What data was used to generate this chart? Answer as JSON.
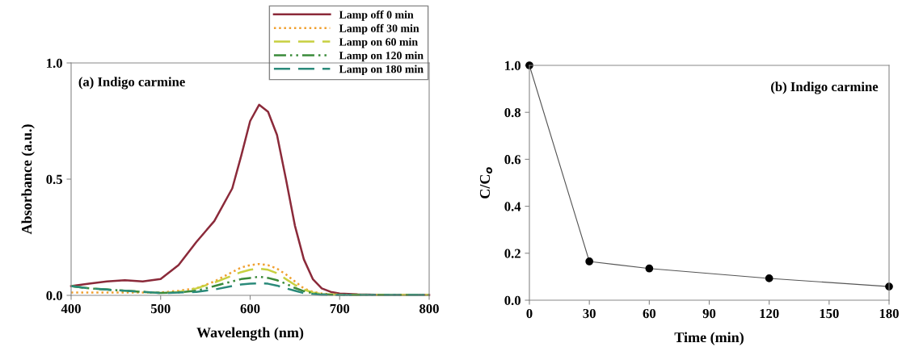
{
  "chart_data": [
    {
      "type": "line",
      "xlabel": "Wavelength (nm)",
      "ylabel": "Absorbance (a.u.)",
      "annotations": [
        "(a) Indigo carmine"
      ],
      "x": [
        400,
        420,
        440,
        460,
        480,
        500,
        520,
        540,
        560,
        580,
        590,
        600,
        610,
        620,
        630,
        640,
        650,
        660,
        670,
        680,
        690,
        700,
        720,
        750,
        800
      ],
      "series": [
        {
          "name": "Lamp off 0 min",
          "color": "#8b2a3a",
          "line_style": "solid",
          "values": [
            0.04,
            0.05,
            0.06,
            0.065,
            0.06,
            0.07,
            0.13,
            0.23,
            0.32,
            0.46,
            0.6,
            0.75,
            0.82,
            0.79,
            0.69,
            0.5,
            0.3,
            0.155,
            0.07,
            0.03,
            0.015,
            0.008,
            0.004,
            0.002,
            0.002
          ]
        },
        {
          "name": "Lamp off 30 min",
          "color": "#f0a030",
          "line_style": "dotted",
          "values": [
            0.012,
            0.012,
            0.012,
            0.012,
            0.012,
            0.012,
            0.02,
            0.03,
            0.06,
            0.1,
            0.12,
            0.13,
            0.135,
            0.13,
            0.115,
            0.09,
            0.06,
            0.03,
            0.015,
            0.008,
            0.005,
            0.003,
            0.002,
            0.002,
            0.002
          ]
        },
        {
          "name": "Lamp on 60 min",
          "color": "#c8d040",
          "line_style": "dashed",
          "values": [
            0.04,
            0.03,
            0.025,
            0.02,
            0.015,
            0.01,
            0.015,
            0.03,
            0.055,
            0.085,
            0.1,
            0.11,
            0.115,
            0.11,
            0.095,
            0.07,
            0.045,
            0.025,
            0.012,
            0.006,
            0.004,
            0.003,
            0.002,
            0.002,
            0.002
          ]
        },
        {
          "name": "Lamp on 120 min",
          "color": "#3a8a3a",
          "line_style": "dashdot",
          "values": [
            0.04,
            0.03,
            0.025,
            0.02,
            0.015,
            0.01,
            0.013,
            0.02,
            0.04,
            0.06,
            0.07,
            0.075,
            0.08,
            0.075,
            0.065,
            0.05,
            0.032,
            0.018,
            0.009,
            0.005,
            0.003,
            0.002,
            0.002,
            0.002,
            0.002
          ]
        },
        {
          "name": "Lamp on 180 min",
          "color": "#2a8a7a",
          "line_style": "dashed",
          "values": [
            0.04,
            0.03,
            0.025,
            0.02,
            0.015,
            0.01,
            0.012,
            0.015,
            0.025,
            0.04,
            0.047,
            0.05,
            0.052,
            0.05,
            0.042,
            0.03,
            0.02,
            0.01,
            0.006,
            0.003,
            0.002,
            0.002,
            0.002,
            0.002,
            0.002
          ]
        }
      ],
      "xlim": [
        400,
        800
      ],
      "xticks": [
        400,
        500,
        600,
        700,
        800
      ],
      "ylim": [
        0,
        1
      ],
      "yticks": [
        {
          "value": 0,
          "label": "0.0"
        },
        {
          "value": 0.5,
          "label": "0.5"
        },
        {
          "value": 1,
          "label": "1.0"
        }
      ],
      "grid": false,
      "legend": "top right"
    },
    {
      "type": "line",
      "xlabel": "Time (min)",
      "ylabel": "C/C$_{o}$",
      "annotations": [
        "(b) Indigo carmine"
      ],
      "x": [
        0,
        30,
        60,
        120,
        180
      ],
      "series": [
        {
          "color": "#000000",
          "values": [
            1.0,
            0.165,
            0.135,
            0.093,
            0.058
          ]
        }
      ],
      "marker": "circle",
      "xlim": [
        0,
        180
      ],
      "xticks": [
        0,
        30,
        60,
        90,
        120,
        150,
        180
      ],
      "ylim": [
        0,
        1
      ],
      "yticks": [
        {
          "value": 0,
          "label": "0.0"
        },
        {
          "value": 0.2,
          "label": "0.2"
        },
        {
          "value": 0.4,
          "label": "0.4"
        },
        {
          "value": 0.6,
          "label": "0.6"
        },
        {
          "value": 0.8,
          "label": "0.8"
        },
        {
          "value": 1,
          "label": "1.0"
        }
      ],
      "grid": false,
      "legend": false
    }
  ]
}
